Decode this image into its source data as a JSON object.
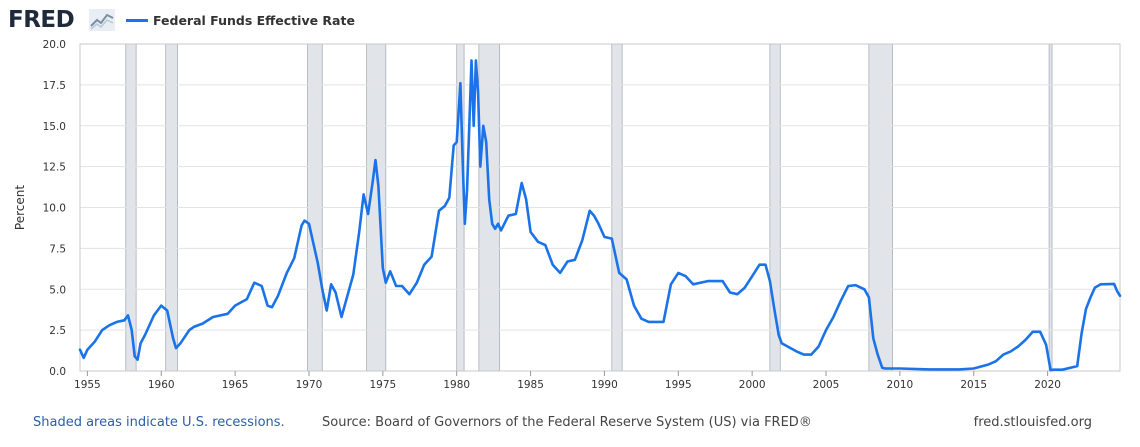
{
  "header": {
    "logo_text": "FRED",
    "logo_icon": "chart-line-icon",
    "legend_label": "Federal Funds Effective Rate",
    "legend_color": "#1a73e8"
  },
  "footer": {
    "recession_note": "Shaded areas indicate U.S. recessions.",
    "source": "Source: Board of Governors of the Federal Reserve System (US) via FRED®",
    "url": "fred.stlouisfed.org"
  },
  "chart_data": {
    "type": "line",
    "title": "",
    "xlabel": "",
    "ylabel": "Percent",
    "xlim": [
      1954.5,
      2024.9
    ],
    "ylim": [
      0,
      20
    ],
    "grid": true,
    "legend_position": "top-left",
    "x_ticks": [
      "1955",
      "1960",
      "1965",
      "1970",
      "1975",
      "1980",
      "1985",
      "1990",
      "1995",
      "2000",
      "2005",
      "2010",
      "2015",
      "2020"
    ],
    "y_ticks": [
      "0.0",
      "2.5",
      "5.0",
      "7.5",
      "10.0",
      "12.5",
      "15.0",
      "17.5",
      "20.0"
    ],
    "recessions": [
      [
        1957.6,
        1958.3
      ],
      [
        1960.3,
        1961.1
      ],
      [
        1969.9,
        1970.9
      ],
      [
        1973.9,
        1975.2
      ],
      [
        1980.0,
        1980.5
      ],
      [
        1981.5,
        1982.9
      ],
      [
        1990.5,
        1991.2
      ],
      [
        2001.2,
        2001.9
      ],
      [
        2007.9,
        2009.5
      ],
      [
        2020.1,
        2020.3
      ]
    ],
    "series": [
      {
        "name": "Federal Funds Effective Rate",
        "color": "#1a73e8",
        "x": [
          1954.5,
          1954.75,
          1955.0,
          1955.5,
          1956.0,
          1956.5,
          1957.0,
          1957.5,
          1957.75,
          1958.0,
          1958.2,
          1958.4,
          1958.6,
          1958.9,
          1959.5,
          1960.0,
          1960.4,
          1960.8,
          1961.0,
          1961.3,
          1961.6,
          1961.9,
          1962.2,
          1962.8,
          1963.5,
          1964.5,
          1965.0,
          1965.8,
          1966.3,
          1966.8,
          1967.2,
          1967.5,
          1967.9,
          1968.5,
          1969.0,
          1969.5,
          1969.7,
          1970.0,
          1970.3,
          1970.6,
          1970.9,
          1971.2,
          1971.5,
          1971.8,
          1972.2,
          1972.6,
          1973.0,
          1973.4,
          1973.7,
          1974.0,
          1974.3,
          1974.5,
          1974.7,
          1975.0,
          1975.2,
          1975.5,
          1975.9,
          1976.3,
          1976.8,
          1977.3,
          1977.8,
          1978.3,
          1978.8,
          1979.2,
          1979.5,
          1979.8,
          1980.0,
          1980.25,
          1980.4,
          1980.55,
          1980.7,
          1980.85,
          1981.0,
          1981.15,
          1981.3,
          1981.45,
          1981.6,
          1981.8,
          1982.0,
          1982.2,
          1982.4,
          1982.6,
          1982.8,
          1983.0,
          1983.5,
          1984.0,
          1984.4,
          1984.7,
          1985.0,
          1985.5,
          1986.0,
          1986.5,
          1987.0,
          1987.5,
          1988.0,
          1988.5,
          1989.0,
          1989.3,
          1989.6,
          1990.0,
          1990.5,
          1991.0,
          1991.5,
          1992.0,
          1992.5,
          1993.0,
          1994.0,
          1994.5,
          1995.0,
          1995.5,
          1996.0,
          1997.0,
          1998.0,
          1998.5,
          1999.0,
          1999.5,
          2000.0,
          2000.5,
          2000.9,
          2001.2,
          2001.5,
          2001.8,
          2002.0,
          2003.0,
          2003.5,
          2004.0,
          2004.5,
          2005.0,
          2005.5,
          2006.0,
          2006.5,
          2007.0,
          2007.6,
          2007.9,
          2008.2,
          2008.5,
          2008.8,
          2009.0,
          2010.0,
          2012.0,
          2014.0,
          2015.0,
          2016.0,
          2016.5,
          2017.0,
          2017.5,
          2018.0,
          2018.5,
          2019.0,
          2019.5,
          2019.9,
          2020.2,
          2020.4,
          2021.0,
          2022.0,
          2022.3,
          2022.6,
          2022.9,
          2023.2,
          2023.6,
          2024.5,
          2024.7,
          2024.9
        ],
        "values": [
          1.3,
          0.8,
          1.3,
          1.8,
          2.5,
          2.8,
          3.0,
          3.1,
          3.4,
          2.5,
          0.9,
          0.7,
          1.7,
          2.2,
          3.4,
          4.0,
          3.7,
          2.0,
          1.4,
          1.7,
          2.1,
          2.5,
          2.7,
          2.9,
          3.3,
          3.5,
          4.0,
          4.4,
          5.4,
          5.2,
          4.0,
          3.9,
          4.6,
          6.0,
          6.9,
          8.9,
          9.2,
          9.0,
          7.8,
          6.6,
          5.0,
          3.7,
          5.3,
          4.8,
          3.3,
          4.6,
          5.9,
          8.5,
          10.8,
          9.6,
          11.5,
          12.9,
          11.3,
          6.3,
          5.4,
          6.1,
          5.2,
          5.2,
          4.7,
          5.4,
          6.5,
          7.0,
          9.8,
          10.1,
          10.6,
          13.8,
          14.0,
          17.6,
          13.0,
          9.0,
          11.0,
          15.0,
          19.0,
          15.0,
          19.0,
          17.0,
          12.5,
          15.0,
          14.0,
          10.5,
          9.0,
          8.7,
          9.0,
          8.6,
          9.5,
          9.6,
          11.5,
          10.5,
          8.5,
          7.9,
          7.7,
          6.5,
          6.0,
          6.7,
          6.8,
          8.0,
          9.8,
          9.5,
          9.0,
          8.2,
          8.1,
          6.0,
          5.6,
          4.0,
          3.2,
          3.0,
          3.0,
          5.3,
          6.0,
          5.8,
          5.3,
          5.5,
          5.5,
          4.8,
          4.7,
          5.1,
          5.8,
          6.5,
          6.5,
          5.5,
          3.8,
          2.2,
          1.7,
          1.2,
          1.0,
          1.0,
          1.5,
          2.5,
          3.3,
          4.3,
          5.2,
          5.25,
          5.0,
          4.5,
          2.0,
          1.0,
          0.2,
          0.15,
          0.15,
          0.1,
          0.1,
          0.15,
          0.4,
          0.6,
          1.0,
          1.2,
          1.5,
          1.9,
          2.4,
          2.4,
          1.6,
          0.05,
          0.08,
          0.08,
          0.3,
          2.3,
          3.8,
          4.5,
          5.1,
          5.3,
          5.33,
          4.9,
          4.6
        ]
      }
    ]
  }
}
